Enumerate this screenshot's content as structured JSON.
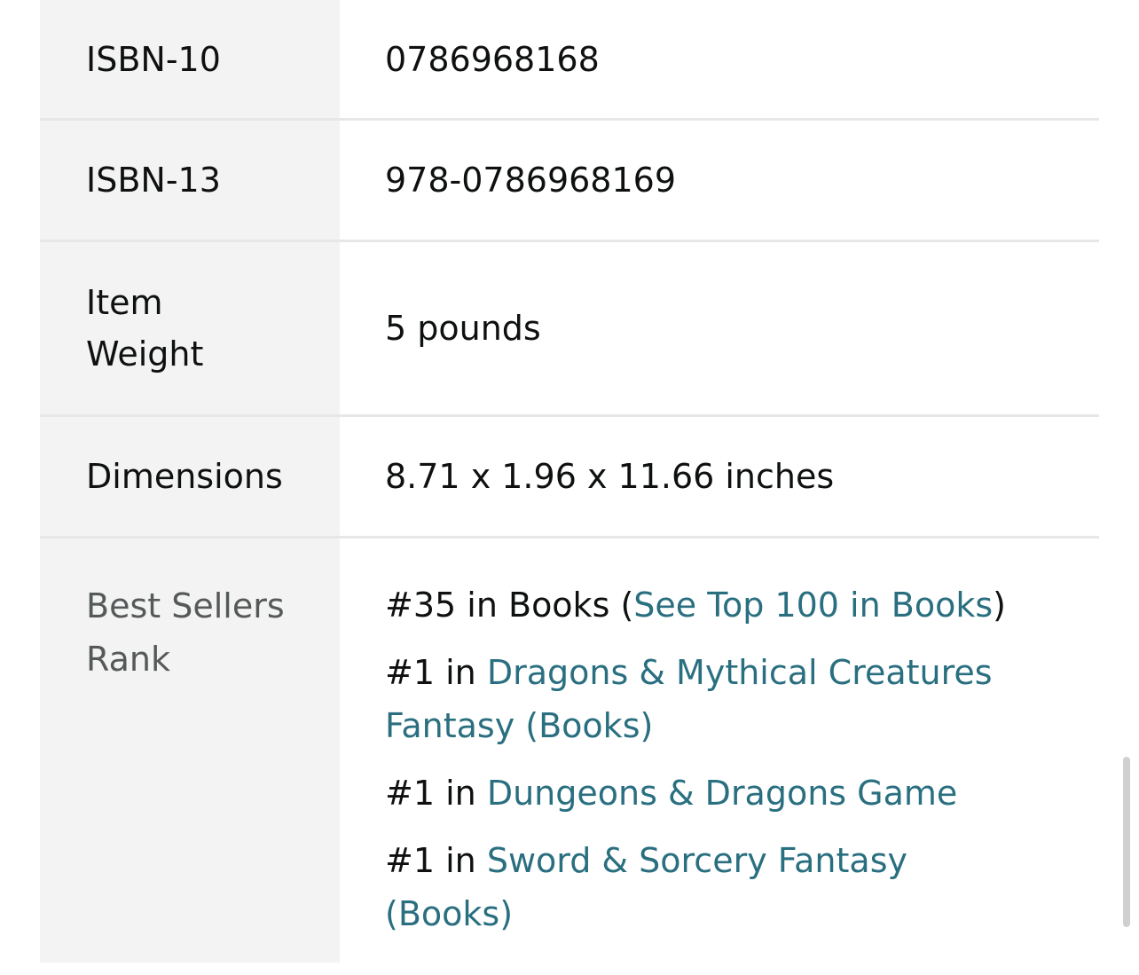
{
  "details": [
    {
      "label": "ISBN-10",
      "value": "0786968168"
    },
    {
      "label": "ISBN-13",
      "value": "978-0786968169"
    },
    {
      "label": "Item Weight",
      "value": "5 pounds"
    },
    {
      "label": "Dimensions",
      "value": "8.71 x 1.96 x 11.66 inches"
    }
  ],
  "best_sellers": {
    "label": "Best Sellers Rank",
    "ranks": [
      {
        "prefix": "#35 in Books (",
        "link": "See Top 100 in Books",
        "suffix": ")"
      },
      {
        "prefix": "#1 in ",
        "link": "Dragons & Mythical Creatures Fantasy (Books)",
        "suffix": ""
      },
      {
        "prefix": "#1 in ",
        "link": "Dungeons & Dragons Game",
        "suffix": ""
      },
      {
        "prefix": "#1 in ",
        "link": "Sword & Sorcery Fantasy (Books)",
        "suffix": ""
      }
    ]
  },
  "colors": {
    "link": "#2a6f80",
    "label_bg": "#f3f3f3"
  }
}
